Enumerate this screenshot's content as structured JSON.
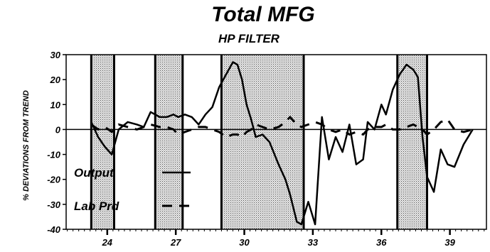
{
  "chart_data": {
    "type": "line",
    "title": "Total MFG",
    "subtitle": "HP FILTER",
    "ylabel": "% DEVIATIONS FROM TREND",
    "xlabel": "",
    "xlim": [
      22.2,
      40.6
    ],
    "ylim": [
      -40,
      30
    ],
    "x_ticks": [
      24,
      27,
      30,
      33,
      36,
      39
    ],
    "y_ticks": [
      30,
      20,
      10,
      0,
      -10,
      -20,
      -30,
      -40
    ],
    "grid": false,
    "legend_position": "lower-left, inside plot",
    "shaded_periods": [
      [
        23.3,
        24.3
      ],
      [
        26.1,
        27.3
      ],
      [
        29.0,
        32.6
      ],
      [
        36.7,
        38.0
      ]
    ],
    "series": [
      {
        "name": "Output",
        "style": "solid",
        "color": "#000000",
        "points": [
          [
            23.3,
            3
          ],
          [
            23.6,
            -3
          ],
          [
            23.9,
            -7
          ],
          [
            24.2,
            -10
          ],
          [
            24.5,
            0
          ],
          [
            24.9,
            3
          ],
          [
            25.3,
            2
          ],
          [
            25.6,
            1
          ],
          [
            25.9,
            7
          ],
          [
            26.3,
            5
          ],
          [
            26.6,
            5
          ],
          [
            26.9,
            6
          ],
          [
            27.1,
            5
          ],
          [
            27.4,
            6
          ],
          [
            27.7,
            5
          ],
          [
            28.0,
            2
          ],
          [
            28.3,
            6
          ],
          [
            28.6,
            9
          ],
          [
            28.9,
            17
          ],
          [
            29.2,
            22
          ],
          [
            29.5,
            27
          ],
          [
            29.7,
            26
          ],
          [
            29.9,
            20
          ],
          [
            30.1,
            10
          ],
          [
            30.3,
            4
          ],
          [
            30.5,
            -3
          ],
          [
            30.8,
            -2
          ],
          [
            31.1,
            -5
          ],
          [
            31.5,
            -14
          ],
          [
            31.8,
            -20
          ],
          [
            32.0,
            -26
          ],
          [
            32.3,
            -37
          ],
          [
            32.5,
            -38
          ],
          [
            32.8,
            -29
          ],
          [
            33.1,
            -38
          ],
          [
            33.4,
            5
          ],
          [
            33.7,
            -12
          ],
          [
            34.0,
            -3
          ],
          [
            34.3,
            -9
          ],
          [
            34.6,
            2
          ],
          [
            34.9,
            -14
          ],
          [
            35.2,
            -12
          ],
          [
            35.4,
            3
          ],
          [
            35.7,
            0
          ],
          [
            36.0,
            10
          ],
          [
            36.2,
            6
          ],
          [
            36.5,
            16
          ],
          [
            36.8,
            22
          ],
          [
            37.1,
            26
          ],
          [
            37.4,
            24
          ],
          [
            37.6,
            21
          ],
          [
            37.8,
            -3
          ],
          [
            38.0,
            -19
          ],
          [
            38.3,
            -25
          ],
          [
            38.6,
            -8
          ],
          [
            38.9,
            -14
          ],
          [
            39.2,
            -15
          ],
          [
            39.6,
            -6
          ],
          [
            40.0,
            0
          ]
        ]
      },
      {
        "name": "Lab Prd",
        "style": "dashed",
        "color": "#000000",
        "points": [
          [
            23.3,
            2
          ],
          [
            23.6,
            0
          ],
          [
            23.9,
            1
          ],
          [
            24.2,
            -1
          ],
          [
            24.5,
            2
          ],
          [
            24.9,
            1
          ],
          [
            25.3,
            0
          ],
          [
            25.6,
            1
          ],
          [
            25.9,
            2
          ],
          [
            26.3,
            1
          ],
          [
            26.6,
            1
          ],
          [
            26.9,
            0
          ],
          [
            27.1,
            -2
          ],
          [
            27.4,
            -1
          ],
          [
            27.7,
            0
          ],
          [
            28.0,
            1
          ],
          [
            28.3,
            1
          ],
          [
            28.6,
            0
          ],
          [
            28.9,
            -1
          ],
          [
            29.2,
            -3
          ],
          [
            29.5,
            -2
          ],
          [
            29.7,
            -2
          ],
          [
            29.9,
            -3
          ],
          [
            30.1,
            -1
          ],
          [
            30.3,
            0
          ],
          [
            30.5,
            2
          ],
          [
            30.8,
            1
          ],
          [
            31.1,
            0
          ],
          [
            31.5,
            1
          ],
          [
            31.8,
            3
          ],
          [
            32.0,
            5
          ],
          [
            32.3,
            2
          ],
          [
            32.5,
            1
          ],
          [
            32.8,
            2
          ],
          [
            33.1,
            3
          ],
          [
            33.4,
            2
          ],
          [
            33.7,
            0
          ],
          [
            34.0,
            -1
          ],
          [
            34.3,
            0
          ],
          [
            34.6,
            -2
          ],
          [
            34.9,
            -1
          ],
          [
            35.2,
            -2
          ],
          [
            35.4,
            0
          ],
          [
            35.7,
            1
          ],
          [
            36.0,
            1
          ],
          [
            36.2,
            2
          ],
          [
            36.5,
            0
          ],
          [
            36.8,
            0
          ],
          [
            37.1,
            1
          ],
          [
            37.4,
            2
          ],
          [
            37.6,
            1
          ],
          [
            37.8,
            0
          ],
          [
            38.0,
            -2
          ],
          [
            38.3,
            0
          ],
          [
            38.6,
            3
          ],
          [
            38.9,
            4
          ],
          [
            39.2,
            0
          ],
          [
            39.6,
            -1
          ],
          [
            40.0,
            0
          ]
        ]
      }
    ]
  }
}
